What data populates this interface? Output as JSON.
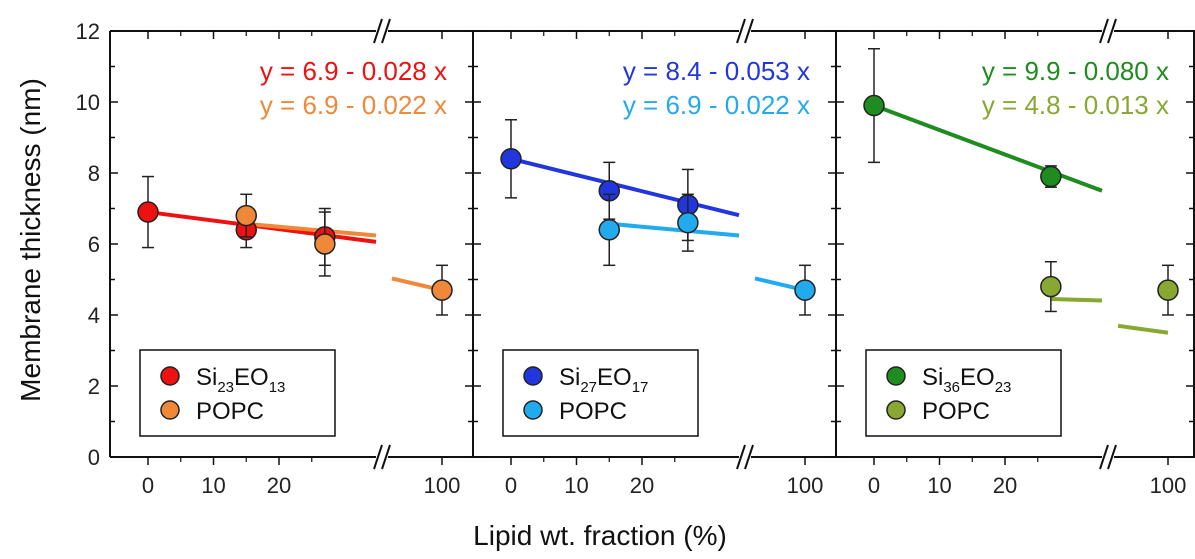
{
  "chart_data": {
    "type": "scatter",
    "ylabel": "Membrane thickness (nm)",
    "xlabel": "Lipid wt. fraction (%)",
    "ylim": [
      0,
      12
    ],
    "y_ticks": [
      0,
      2,
      4,
      6,
      8,
      10,
      12
    ],
    "x_ticks": [
      0,
      10,
      20,
      100
    ],
    "axis_break": true,
    "panels": [
      {
        "equations": [
          {
            "text": "y = 6.9 - 0.028 x",
            "color": "#ee1111"
          },
          {
            "text": "y = 6.9 - 0.022 x",
            "color": "#f0883a"
          }
        ],
        "legend": [
          {
            "sub_parts": [
              "Si",
              "23",
              "EO",
              "13"
            ],
            "color": "#ee1111"
          },
          {
            "text": "POPC",
            "color": "#f0883a"
          }
        ],
        "series": [
          {
            "name": "Si23EO13",
            "color": "#ee1111",
            "fit": [
              6.9,
              -0.028
            ],
            "points": [
              {
                "x": 0,
                "y": 6.9,
                "err": 1.0
              },
              {
                "x": 15,
                "y": 6.4,
                "err": 0.5
              },
              {
                "x": 27,
                "y": 6.2,
                "err": 0.8
              }
            ]
          },
          {
            "name": "POPC",
            "color": "#f0883a",
            "fit": [
              6.9,
              -0.022
            ],
            "points": [
              {
                "x": 15,
                "y": 6.8,
                "err": 0.6
              },
              {
                "x": 27,
                "y": 6.0,
                "err": 0.9
              },
              {
                "x": 100,
                "y": 4.7,
                "err": 0.7
              }
            ]
          }
        ]
      },
      {
        "equations": [
          {
            "text": "y = 8.4 - 0.053 x",
            "color": "#2236dd"
          },
          {
            "text": "y = 6.9 - 0.022 x",
            "color": "#22aaee"
          }
        ],
        "legend": [
          {
            "sub_parts": [
              "Si",
              "27",
              "EO",
              "17"
            ],
            "color": "#2236dd"
          },
          {
            "text": "POPC",
            "color": "#22aaee"
          }
        ],
        "series": [
          {
            "name": "Si27EO17",
            "color": "#2236dd",
            "fit": [
              8.4,
              -0.053
            ],
            "points": [
              {
                "x": 0,
                "y": 8.4,
                "err": 1.1
              },
              {
                "x": 15,
                "y": 7.5,
                "err": 0.8
              },
              {
                "x": 27,
                "y": 7.1,
                "err": 1.0
              }
            ]
          },
          {
            "name": "POPC",
            "color": "#22aaee",
            "fit": [
              6.9,
              -0.022
            ],
            "points": [
              {
                "x": 15,
                "y": 6.4,
                "err": 1.0
              },
              {
                "x": 27,
                "y": 6.6,
                "err": 0.8
              },
              {
                "x": 100,
                "y": 4.7,
                "err": 0.7
              }
            ]
          }
        ]
      },
      {
        "equations": [
          {
            "text": "y = 9.9 - 0.080 x",
            "color": "#1e8c1e"
          },
          {
            "text": "y = 4.8 - 0.013 x",
            "color": "#88a832"
          }
        ],
        "legend": [
          {
            "sub_parts": [
              "Si",
              "36",
              "EO",
              "23"
            ],
            "color": "#1e8c1e"
          },
          {
            "text": "POPC",
            "color": "#88a832"
          }
        ],
        "series": [
          {
            "name": "Si36EO23",
            "color": "#1e8c1e",
            "fit": [
              9.9,
              -0.08
            ],
            "points": [
              {
                "x": 0,
                "y": 9.9,
                "err": 1.6
              },
              {
                "x": 27,
                "y": 7.9,
                "err": 0.3
              }
            ]
          },
          {
            "name": "POPC",
            "color": "#88a832",
            "fit": [
              4.8,
              -0.013
            ],
            "points": [
              {
                "x": 27,
                "y": 4.8,
                "err": 0.7
              },
              {
                "x": 100,
                "y": 4.7,
                "err": 0.7
              }
            ]
          }
        ]
      }
    ]
  }
}
